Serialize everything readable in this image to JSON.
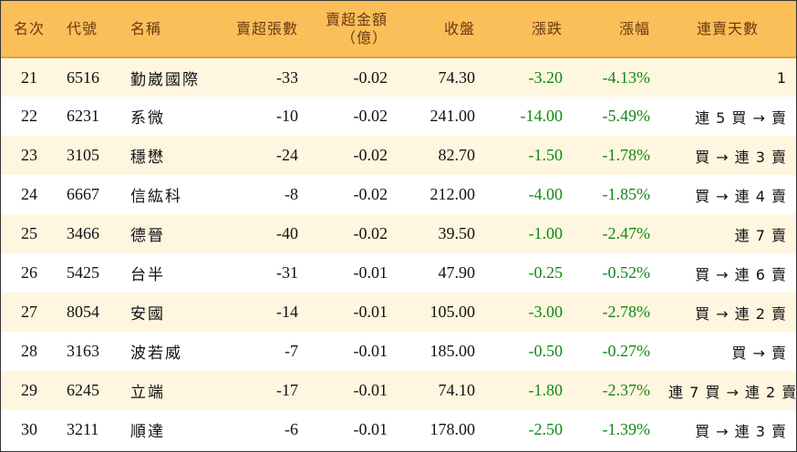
{
  "headers": {
    "rank": "名次",
    "code": "代號",
    "name": "名稱",
    "sell_lots": "賣超張數",
    "sell_amount_line1": "賣超金額",
    "sell_amount_line2": "（億）",
    "close": "收盤",
    "change": "漲跌",
    "pct": "漲幅",
    "streak": "連賣天數"
  },
  "rows": [
    {
      "rank": "21",
      "code": "6516",
      "name": "勤崴國際",
      "lots": "-33",
      "amount": "-0.02",
      "close": "74.30",
      "change": "-3.20",
      "pct": "-4.13%",
      "streak": "1"
    },
    {
      "rank": "22",
      "code": "6231",
      "name": "系微",
      "lots": "-10",
      "amount": "-0.02",
      "close": "241.00",
      "change": "-14.00",
      "pct": "-5.49%",
      "streak": "連 5 買 → 賣"
    },
    {
      "rank": "23",
      "code": "3105",
      "name": "穩懋",
      "lots": "-24",
      "amount": "-0.02",
      "close": "82.70",
      "change": "-1.50",
      "pct": "-1.78%",
      "streak": "買 → 連 3 賣"
    },
    {
      "rank": "24",
      "code": "6667",
      "name": "信紘科",
      "lots": "-8",
      "amount": "-0.02",
      "close": "212.00",
      "change": "-4.00",
      "pct": "-1.85%",
      "streak": "買 → 連 4 賣"
    },
    {
      "rank": "25",
      "code": "3466",
      "name": "德晉",
      "lots": "-40",
      "amount": "-0.02",
      "close": "39.50",
      "change": "-1.00",
      "pct": "-2.47%",
      "streak": "連 7 賣"
    },
    {
      "rank": "26",
      "code": "5425",
      "name": "台半",
      "lots": "-31",
      "amount": "-0.01",
      "close": "47.90",
      "change": "-0.25",
      "pct": "-0.52%",
      "streak": "買 → 連 6 賣"
    },
    {
      "rank": "27",
      "code": "8054",
      "name": "安國",
      "lots": "-14",
      "amount": "-0.01",
      "close": "105.00",
      "change": "-3.00",
      "pct": "-2.78%",
      "streak": "買 → 連 2 賣"
    },
    {
      "rank": "28",
      "code": "3163",
      "name": "波若威",
      "lots": "-7",
      "amount": "-0.01",
      "close": "185.00",
      "change": "-0.50",
      "pct": "-0.27%",
      "streak": "買 → 賣"
    },
    {
      "rank": "29",
      "code": "6245",
      "name": "立端",
      "lots": "-17",
      "amount": "-0.01",
      "close": "74.10",
      "change": "-1.80",
      "pct": "-2.37%",
      "streak": "連 7 買 → 連 2 賣"
    },
    {
      "rank": "30",
      "code": "3211",
      "name": "順達",
      "lots": "-6",
      "amount": "-0.01",
      "close": "178.00",
      "change": "-2.50",
      "pct": "-1.39%",
      "streak": "買 → 連 3 賣"
    }
  ],
  "colors": {
    "header_bg": "#fbbf5a",
    "header_text": "#6b3a12",
    "alt_row_bg": "#fef6df",
    "negative": "#118811"
  }
}
